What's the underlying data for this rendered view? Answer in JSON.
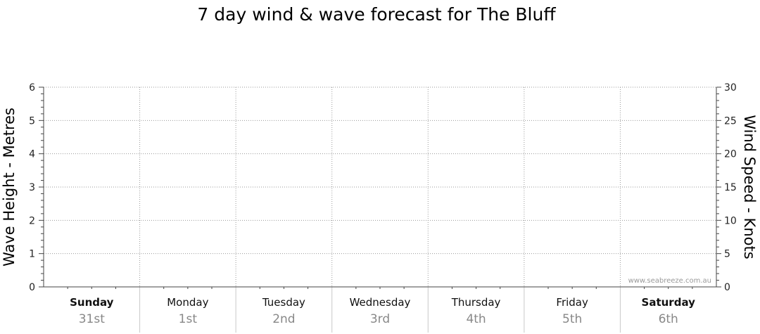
{
  "chart_data": {
    "type": "line",
    "title": "7 day wind & wave forecast for The Bluff",
    "ylabel_left": "Wave Height - Metres",
    "ylabel_right": "Wind Speed - Knots",
    "ylim_left": [
      0,
      6
    ],
    "ylim_right": [
      0,
      30
    ],
    "yticks_left": [
      0,
      1,
      2,
      3,
      4,
      5,
      6
    ],
    "yticks_right": [
      0,
      5,
      10,
      15,
      20,
      25,
      30
    ],
    "grid": true,
    "days": [
      {
        "name": "Sunday",
        "date": "31st",
        "bold": true
      },
      {
        "name": "Monday",
        "date": "1st",
        "bold": false
      },
      {
        "name": "Tuesday",
        "date": "2nd",
        "bold": false
      },
      {
        "name": "Wednesday",
        "date": "3rd",
        "bold": false
      },
      {
        "name": "Thursday",
        "date": "4th",
        "bold": false
      },
      {
        "name": "Friday",
        "date": "5th",
        "bold": false
      },
      {
        "name": "Saturday",
        "date": "6th",
        "bold": true
      }
    ],
    "series": [],
    "watermark": "www.seabreeze.com.au"
  }
}
